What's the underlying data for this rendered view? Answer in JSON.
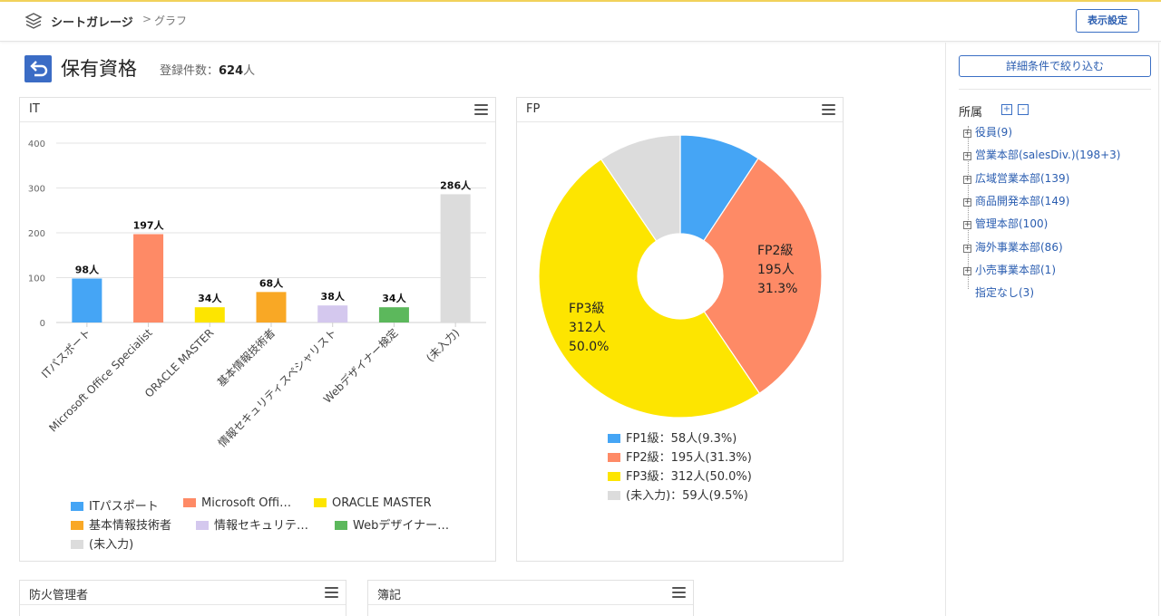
{
  "header": {
    "brand": "シートガレージ",
    "breadcrumb_sep": ">",
    "breadcrumb": "グラフ",
    "display_settings": "表示設定"
  },
  "page": {
    "title": "保有資格",
    "count_label": "登録件数：",
    "count_value": "624",
    "count_unit": "人"
  },
  "it_card": {
    "title": "IT"
  },
  "fp_card": {
    "title": "FP"
  },
  "fire_card": {
    "title": "防火管理者"
  },
  "boki_card": {
    "title": "簿記"
  },
  "chart_data": [
    {
      "type": "bar",
      "title": "IT",
      "categories": [
        "ITパスポート",
        "Microsoft Office Specialist",
        "ORACLE MASTER",
        "基本情報技術者",
        "情報セキュリティスペシャリスト",
        "Webデザイナー検定",
        "(未入力)"
      ],
      "values": [
        98,
        197,
        34,
        68,
        38,
        34,
        286
      ],
      "data_labels": [
        "98人",
        "197人",
        "34人",
        "68人",
        "38人",
        "34人",
        "286人"
      ],
      "colors": [
        "#45a5f5",
        "#fe8a66",
        "#fde500",
        "#f9a825",
        "#d4c8ee",
        "#5cb85c",
        "#dcdcdc"
      ],
      "ylim": [
        0,
        400
      ],
      "yticks": [
        0,
        100,
        200,
        300,
        400
      ],
      "grid": true,
      "legend": [
        "ITパスポート",
        "Microsoft Offi…",
        "ORACLE MASTER",
        "基本情報技術者",
        "情報セキュリテ…",
        "Webデザイナー…",
        "(未入力)"
      ],
      "legend_position": "bottom"
    },
    {
      "type": "pie",
      "title": "FP",
      "labels": [
        "FP1級",
        "FP2級",
        "FP3級",
        "(未入力)"
      ],
      "values": [
        58,
        195,
        312,
        59
      ],
      "percents": [
        "9.3%",
        "31.3%",
        "50.0%",
        "9.5%"
      ],
      "unit": "人",
      "colors": [
        "#45a5f5",
        "#fe8a66",
        "#fde500",
        "#dcdcdc"
      ],
      "donut": true,
      "slice_labels": [
        {
          "l1": "FP2級",
          "l2": "195人",
          "l3": "31.3%"
        },
        {
          "l1": "FP3級",
          "l2": "312人",
          "l3": "50.0%"
        }
      ],
      "legend": [
        "FP1級：58人(9.3%)",
        "FP2級：195人(31.3%)",
        "FP3級：312人(50.0%)",
        "(未入力)：59人(9.5%)"
      ],
      "legend_position": "bottom"
    }
  ],
  "sidebar": {
    "filter_button": "詳細条件で絞り込む",
    "org_label": "所属",
    "expand_all": "+",
    "collapse_all": "-",
    "items": [
      "役員(9)",
      "営業本部(salesDiv.)(198+3)",
      "広域営業本部(139)",
      "商品開発本部(149)",
      "管理本部(100)",
      "海外事業本部(86)",
      "小売事業本部(1)"
    ],
    "leaf": "指定なし(3)"
  },
  "icons": {
    "brand": "layers-icon",
    "back": "back-arrow-icon",
    "menu": "hamburger-menu-icon",
    "tree_expand": "plus-box-icon"
  }
}
